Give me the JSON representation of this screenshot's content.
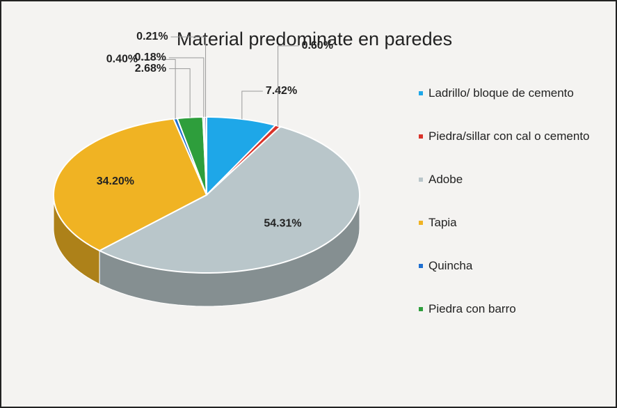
{
  "chart_data": {
    "type": "pie",
    "title": "Material predominate en paredes",
    "categories": [
      "Ladrillo/ bloque de cemento",
      "Piedra/sillar con cal o cemento",
      "Adobe",
      "Tapia",
      "Quincha",
      "Piedra con barro",
      null,
      null
    ],
    "values": [
      7.42,
      0.6,
      54.31,
      34.2,
      0.4,
      2.68,
      0.18,
      0.21
    ],
    "value_labels": [
      "7.42%",
      "0.60%",
      "54.31%",
      "34.20%",
      "0.40%",
      "2.68%",
      "0.18%",
      "0.21%"
    ],
    "colors": [
      "#1ea7e8",
      "#d9332a",
      "#b9c6ca",
      "#f0b323",
      "#1f6fd0",
      "#2e9e3c",
      "#9aa9b0",
      "#8a7ab8"
    ],
    "legend": "right"
  }
}
